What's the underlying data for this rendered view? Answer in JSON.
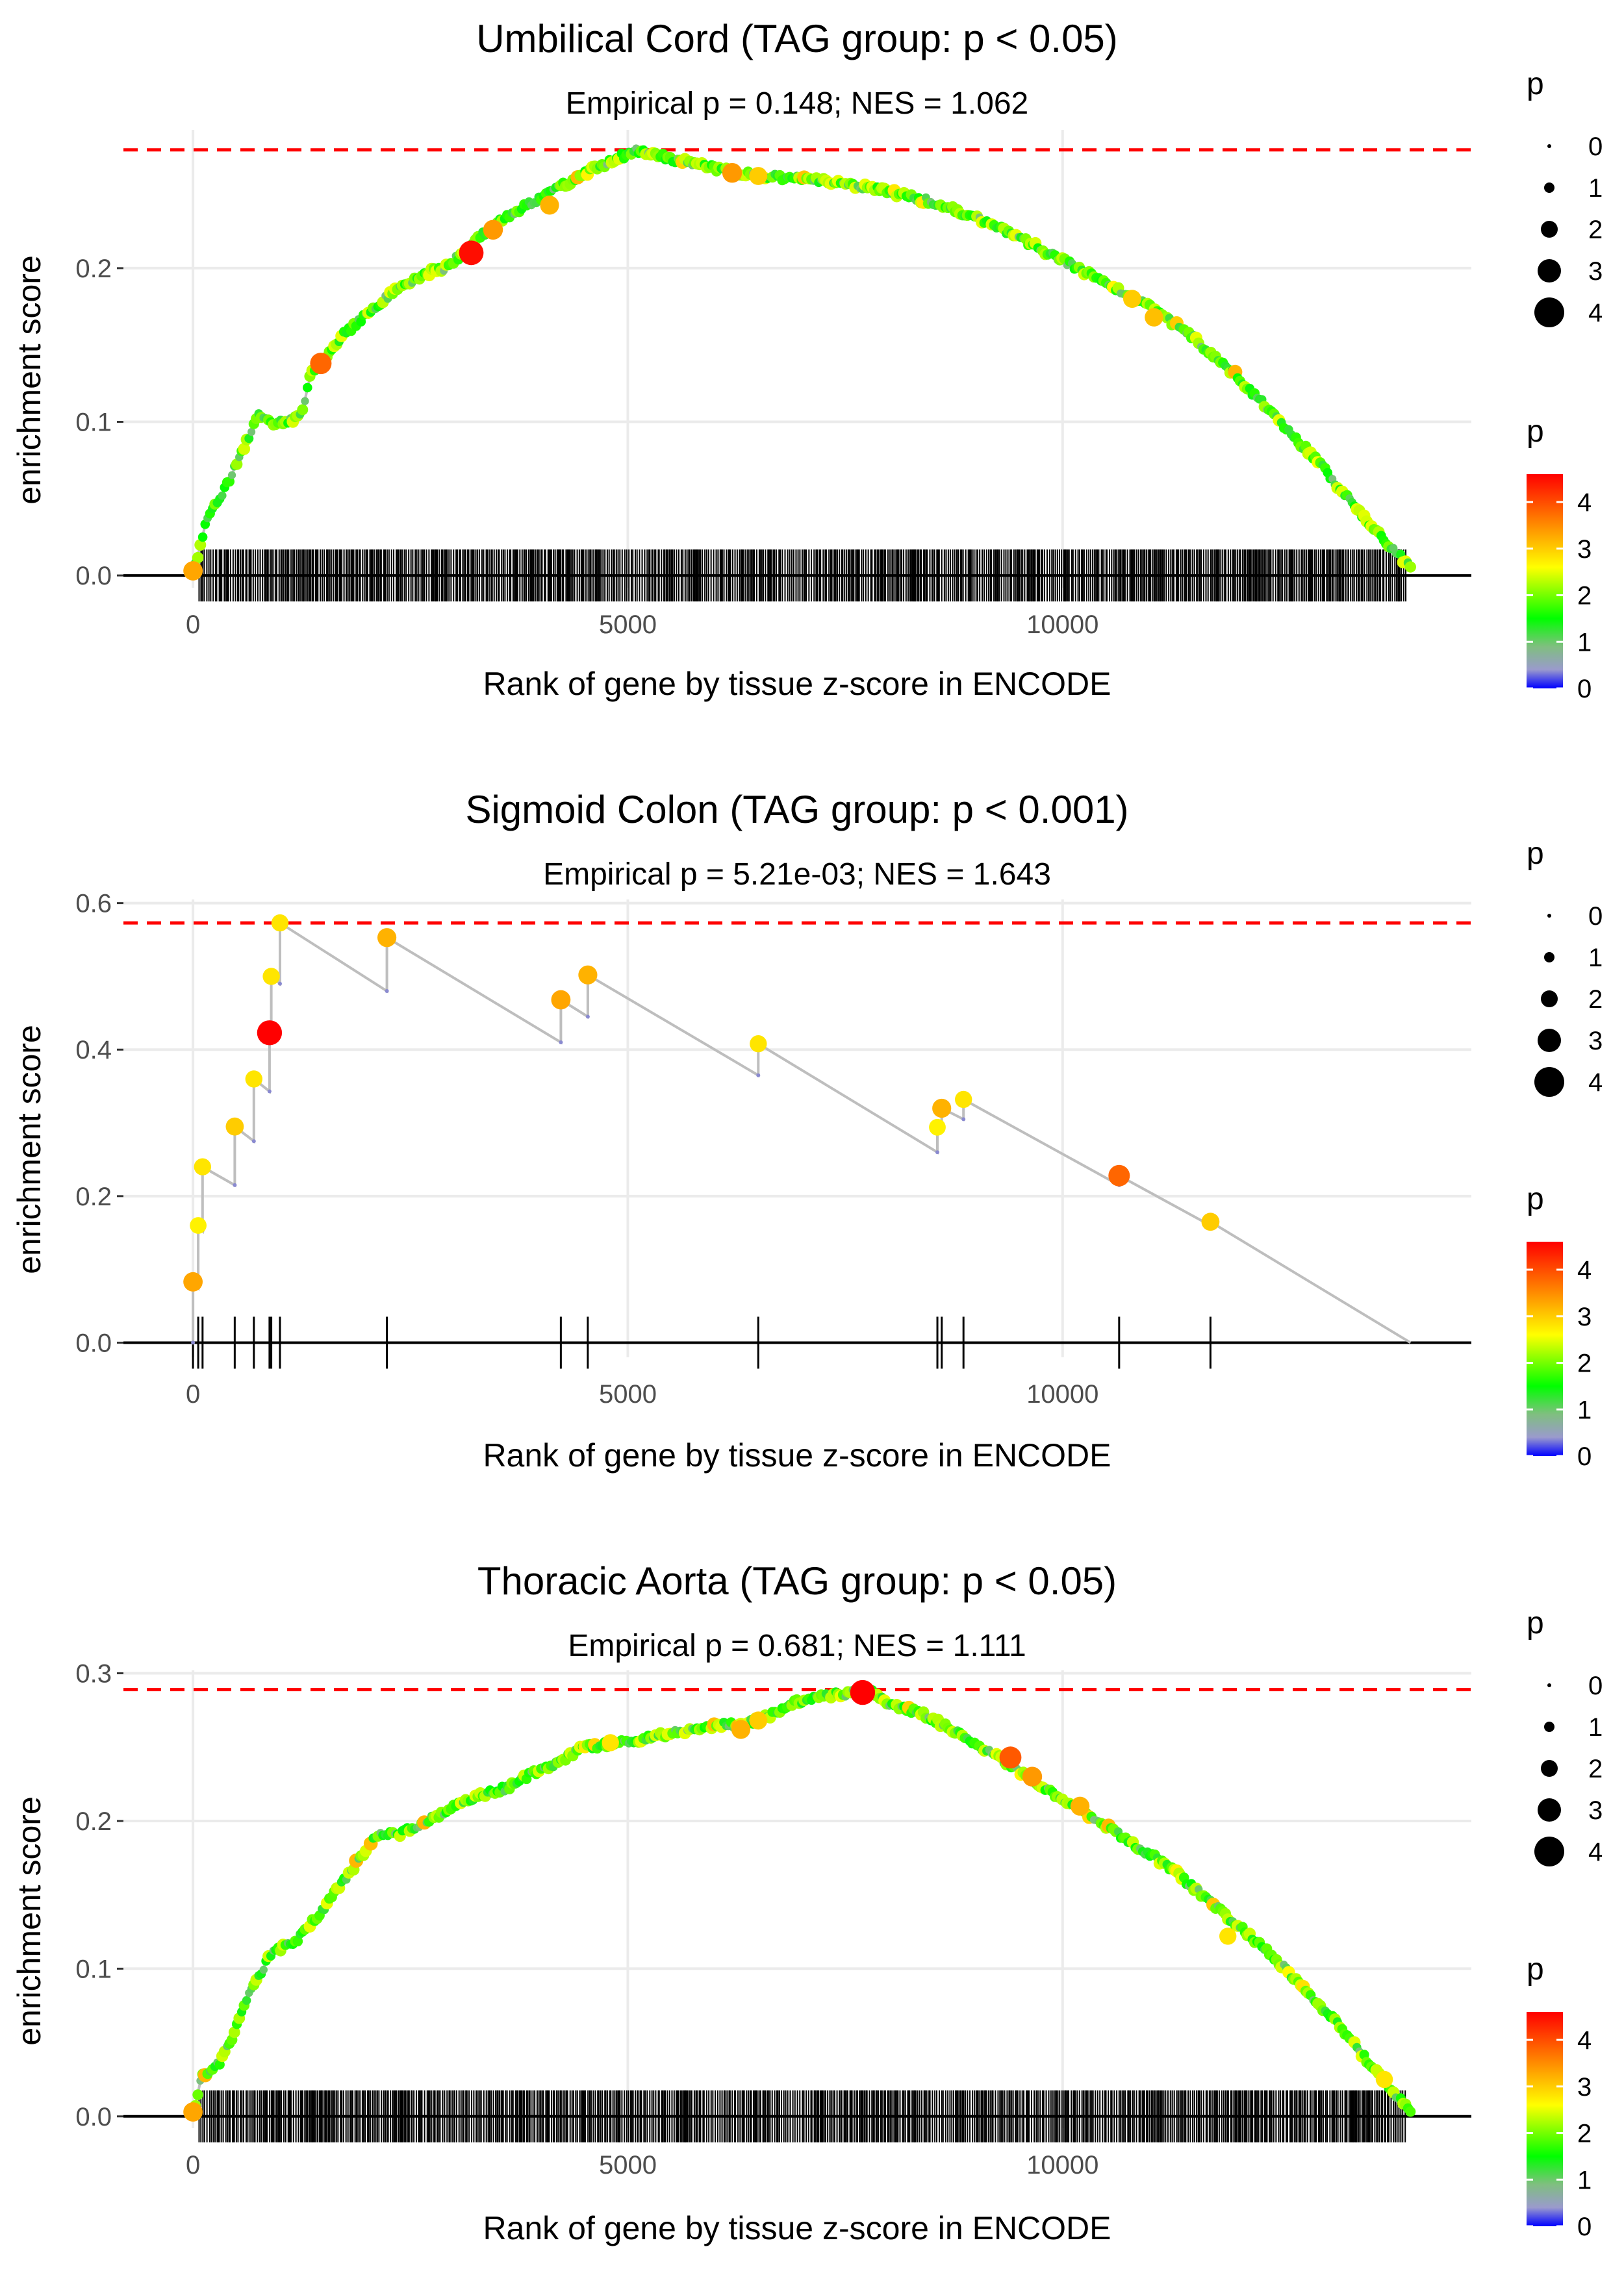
{
  "colors": {
    "threshold_line": "#ff0000",
    "curve_line": "#bebebe",
    "grid": "#ebebeb",
    "rug": "#000000",
    "axis_text": "#4d4d4d",
    "title_text": "#000000",
    "colorbar_stops": [
      "#0000ff",
      "#9a9acd",
      "#7fbf7f",
      "#00ff00",
      "#ffff00",
      "#ff8c00",
      "#ff0000"
    ]
  },
  "legend": {
    "size_title": "p",
    "color_title": "p",
    "size_values": [
      "0",
      "1",
      "2",
      "3",
      "4"
    ],
    "color_ticks": [
      "0",
      "1",
      "2",
      "3",
      "4"
    ]
  },
  "chart_data": [
    {
      "type": "scatter",
      "title": "Umbilical Cord (TAG group: p < 0.05)",
      "subtitle": "Empirical p = 0.148; NES = 1.062",
      "xlabel": "Rank of gene by tissue z-score in ENCODE",
      "ylabel": "enrichment score",
      "xlim": [
        -800,
        14700
      ],
      "ylim": [
        -0.008,
        0.29
      ],
      "x_ticks": [
        0,
        5000,
        10000
      ],
      "x_tick_labels": [
        "0",
        "5000",
        "10000"
      ],
      "y_ticks": [
        0,
        0.1,
        0.2
      ],
      "y_tick_labels": [
        "0.0",
        "0.1",
        "0.2"
      ],
      "max_es": 0.277,
      "n_genes": 14000,
      "curve": {
        "x": [
          0,
          150,
          400,
          600,
          760,
          900,
          1100,
          1250,
          1350,
          1500,
          1700,
          1900,
          2100,
          2300,
          2500,
          2700,
          2900,
          3100,
          3300,
          3500,
          3700,
          3900,
          4100,
          4300,
          4500,
          4700,
          4900,
          5100,
          5300,
          5600,
          6000,
          6500,
          7000,
          7500,
          8000,
          8500,
          9000,
          9500,
          10000,
          10500,
          11000,
          11500,
          12000,
          12500,
          13000,
          13500,
          14000
        ],
        "y": [
          0.0,
          0.035,
          0.06,
          0.085,
          0.105,
          0.1,
          0.1,
          0.105,
          0.13,
          0.14,
          0.155,
          0.165,
          0.175,
          0.185,
          0.19,
          0.197,
          0.2,
          0.21,
          0.22,
          0.23,
          0.236,
          0.243,
          0.249,
          0.255,
          0.262,
          0.267,
          0.272,
          0.277,
          0.274,
          0.27,
          0.265,
          0.26,
          0.258,
          0.255,
          0.25,
          0.243,
          0.233,
          0.22,
          0.205,
          0.19,
          0.175,
          0.155,
          0.13,
          0.1,
          0.07,
          0.035,
          0.005
        ]
      },
      "highlight_points": [
        {
          "x": 0,
          "y": 0.003,
          "p": 3.3
        },
        {
          "x": 1470,
          "y": 0.138,
          "p": 3.8
        },
        {
          "x": 3200,
          "y": 0.21,
          "p": 4.5
        },
        {
          "x": 3450,
          "y": 0.225,
          "p": 3.4
        },
        {
          "x": 4100,
          "y": 0.241,
          "p": 3.2
        },
        {
          "x": 6200,
          "y": 0.262,
          "p": 3.4
        },
        {
          "x": 6500,
          "y": 0.26,
          "p": 3.0
        },
        {
          "x": 10800,
          "y": 0.18,
          "p": 3.0
        },
        {
          "x": 11050,
          "y": 0.168,
          "p": 3.1
        }
      ],
      "rug_style": "dense",
      "rug_segments": [
        [
          70,
          13950
        ]
      ]
    },
    {
      "type": "scatter",
      "title": "Sigmoid Colon (TAG group: p < 0.001)",
      "subtitle": "Empirical p = 5.21e-03; NES = 1.643",
      "xlabel": "Rank of gene by tissue z-score in ENCODE",
      "ylabel": "enrichment score",
      "xlim": [
        -800,
        14700
      ],
      "ylim": [
        -0.02,
        0.605
      ],
      "x_ticks": [
        0,
        5000,
        10000
      ],
      "x_tick_labels": [
        "0",
        "5000",
        "10000"
      ],
      "y_ticks": [
        0,
        0.2,
        0.4,
        0.6
      ],
      "y_tick_labels": [
        "0.0",
        "0.2",
        "0.4",
        "0.6"
      ],
      "max_es": 0.573,
      "n_genes": 14000,
      "curve": {
        "x": [
          0,
          0,
          60,
          60,
          110,
          110,
          480,
          480,
          700,
          700,
          880,
          880,
          900,
          900,
          1000,
          1000,
          2230,
          2230,
          4230,
          4230,
          4540,
          4540,
          6500,
          6500,
          8560,
          8560,
          8610,
          8610,
          8860,
          8860,
          10650,
          10650,
          11700,
          11700,
          14000
        ],
        "y": [
          0.0,
          0.083,
          0.075,
          0.16,
          0.153,
          0.24,
          0.215,
          0.295,
          0.275,
          0.36,
          0.343,
          0.423,
          0.418,
          0.5,
          0.49,
          0.573,
          0.48,
          0.553,
          0.41,
          0.468,
          0.445,
          0.502,
          0.365,
          0.408,
          0.26,
          0.294,
          0.29,
          0.32,
          0.305,
          0.332,
          0.215,
          0.228,
          0.16,
          0.165,
          0.0
        ]
      },
      "highlight_points": [
        {
          "x": 0,
          "y": 0.083,
          "p": 3.3
        },
        {
          "x": 60,
          "y": 0.16,
          "p": 2.7
        },
        {
          "x": 110,
          "y": 0.24,
          "p": 2.8
        },
        {
          "x": 480,
          "y": 0.295,
          "p": 3.0
        },
        {
          "x": 700,
          "y": 0.36,
          "p": 2.8
        },
        {
          "x": 880,
          "y": 0.423,
          "p": 4.6
        },
        {
          "x": 900,
          "y": 0.5,
          "p": 2.8
        },
        {
          "x": 1000,
          "y": 0.573,
          "p": 2.8
        },
        {
          "x": 2230,
          "y": 0.553,
          "p": 3.2
        },
        {
          "x": 4230,
          "y": 0.468,
          "p": 3.3
        },
        {
          "x": 4540,
          "y": 0.502,
          "p": 3.2
        },
        {
          "x": 6500,
          "y": 0.408,
          "p": 2.8
        },
        {
          "x": 8560,
          "y": 0.294,
          "p": 2.7
        },
        {
          "x": 8610,
          "y": 0.32,
          "p": 3.2
        },
        {
          "x": 8860,
          "y": 0.332,
          "p": 2.8
        },
        {
          "x": 10650,
          "y": 0.228,
          "p": 3.8
        },
        {
          "x": 11700,
          "y": 0.165,
          "p": 3.0
        }
      ],
      "rug_style": "list",
      "rug_x": [
        0,
        60,
        110,
        480,
        700,
        880,
        900,
        1000,
        2230,
        4230,
        4540,
        6500,
        8560,
        8610,
        8860,
        10650,
        11700
      ]
    },
    {
      "type": "scatter",
      "title": "Thoracic Aorta (TAG group: p < 0.05)",
      "subtitle": "Empirical p = 0.681; NES = 1.111",
      "xlabel": "Rank of gene by tissue z-score in ENCODE",
      "ylabel": "enrichment score",
      "xlim": [
        -800,
        14700
      ],
      "ylim": [
        -0.008,
        0.302
      ],
      "x_ticks": [
        0,
        5000,
        10000
      ],
      "x_tick_labels": [
        "0",
        "5000",
        "10000"
      ],
      "y_ticks": [
        0,
        0.1,
        0.2,
        0.3
      ],
      "y_tick_labels": [
        "0.0",
        "0.1",
        "0.2",
        "0.3"
      ],
      "max_es": 0.289,
      "n_genes": 14000,
      "curve": {
        "x": [
          0,
          100,
          300,
          500,
          700,
          900,
          1200,
          1500,
          1800,
          2100,
          2400,
          2700,
          3000,
          3300,
          3600,
          3900,
          4200,
          4500,
          4800,
          5100,
          5400,
          5700,
          6000,
          6300,
          6600,
          6900,
          7200,
          7500,
          7750,
          8000,
          8400,
          8800,
          9200,
          9600,
          10000,
          10400,
          10800,
          11200,
          11600,
          12000,
          12400,
          12800,
          13200,
          13600,
          14000
        ],
        "y": [
          0.0,
          0.028,
          0.036,
          0.06,
          0.09,
          0.11,
          0.12,
          0.14,
          0.165,
          0.19,
          0.192,
          0.2,
          0.21,
          0.218,
          0.222,
          0.232,
          0.24,
          0.25,
          0.252,
          0.255,
          0.258,
          0.262,
          0.265,
          0.265,
          0.27,
          0.28,
          0.285,
          0.286,
          0.289,
          0.28,
          0.272,
          0.26,
          0.245,
          0.23,
          0.215,
          0.2,
          0.185,
          0.17,
          0.15,
          0.13,
          0.11,
          0.085,
          0.06,
          0.03,
          0.003
        ]
      },
      "highlight_points": [
        {
          "x": 0,
          "y": 0.003,
          "p": 3.3
        },
        {
          "x": 4800,
          "y": 0.253,
          "p": 2.8
        },
        {
          "x": 6300,
          "y": 0.262,
          "p": 3.2
        },
        {
          "x": 6500,
          "y": 0.268,
          "p": 3.0
        },
        {
          "x": 7700,
          "y": 0.287,
          "p": 4.6
        },
        {
          "x": 9400,
          "y": 0.243,
          "p": 3.9
        },
        {
          "x": 9650,
          "y": 0.23,
          "p": 3.4
        },
        {
          "x": 10200,
          "y": 0.21,
          "p": 3.2
        },
        {
          "x": 11900,
          "y": 0.122,
          "p": 2.8
        },
        {
          "x": 13700,
          "y": 0.025,
          "p": 2.8
        }
      ],
      "rug_style": "dense",
      "rug_segments": [
        [
          70,
          13950
        ]
      ]
    }
  ]
}
